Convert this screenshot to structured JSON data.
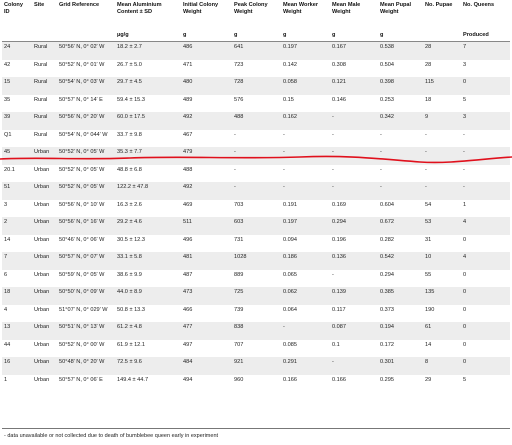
{
  "headers": [
    "Colony ID",
    "Site",
    "Grid Reference",
    "Mean Aluminium Content ± SD",
    "Initial Colony Weight",
    "Peak Colony Weight",
    "Mean Worker Weight",
    "Mean Male Weight",
    "Mean Pupal Weight",
    "No. Pupae",
    "No. Queens"
  ],
  "units": [
    "",
    "",
    "",
    "µg/g",
    "g",
    "g",
    "g",
    "g",
    "g",
    "",
    "Produced"
  ],
  "rows": [
    [
      "24",
      "Rural",
      "50°56′ N, 0° 02′ W",
      "18.2 ± 2.7",
      "486",
      "641",
      "0.197",
      "0.167",
      "0.538",
      "28",
      "7"
    ],
    [
      "42",
      "Rural",
      "50°52′ N, 0° 01′ W",
      "26.7 ± 5.0",
      "471",
      "723",
      "0.142",
      "0.308",
      "0.504",
      "28",
      "3"
    ],
    [
      "15",
      "Rural",
      "50°54′ N, 0° 03′ W",
      "29.7 ± 4.5",
      "480",
      "728",
      "0.058",
      "0.121",
      "0.398",
      "115",
      "0"
    ],
    [
      "35",
      "Rural",
      "50°57′ N, 0° 14′ E",
      "59.4 ± 15.3",
      "489",
      "576",
      "0.15",
      "0.146",
      "0.253",
      "18",
      "5"
    ],
    [
      "39",
      "Rural",
      "50°56′ N, 0° 20′ W",
      "60.0 ± 17.5",
      "492",
      "488",
      "0.162",
      "-",
      "0.342",
      "9",
      "3"
    ],
    [
      "Q1",
      "Rural",
      "50°54′ N, 0° 044′ W",
      "33.7 ± 9.8",
      "467",
      "-",
      "-",
      "-",
      "-",
      "-",
      "-"
    ],
    [
      "45",
      "Urban",
      "50°52′ N, 0° 05′ W",
      "35.3 ± 7.7",
      "479",
      "-",
      "-",
      "-",
      "-",
      "-",
      "-"
    ],
    [
      "20.1",
      "Urban",
      "50°52′ N, 0° 05′ W",
      "48.8 ± 6.8",
      "488",
      "-",
      "-",
      "-",
      "-",
      "-",
      "-"
    ],
    [
      "51",
      "Urban",
      "50°52′ N, 0° 05′ W",
      "122.2 ± 47.8",
      "492",
      "-",
      "-",
      "-",
      "-",
      "-",
      "-"
    ],
    [
      "3",
      "Urban",
      "50°56′ N, 0° 10′ W",
      "16.3 ± 2.6",
      "469",
      "703",
      "0.191",
      "0.169",
      "0.604",
      "54",
      "1"
    ],
    [
      "2",
      "Urban",
      "50°56′ N, 0° 16′ W",
      "29.2 ± 4.6",
      "511",
      "603",
      "0.197",
      "0.294",
      "0.672",
      "53",
      "4"
    ],
    [
      "14",
      "Urban",
      "50°46′ N, 0° 06′ W",
      "30.5 ± 12.3",
      "496",
      "731",
      "0.094",
      "0.196",
      "0.282",
      "31",
      "0"
    ],
    [
      "7",
      "Urban",
      "50°57′ N, 0° 07′ W",
      "33.1 ± 5.8",
      "481",
      "1028",
      "0.186",
      "0.136",
      "0.542",
      "10",
      "4"
    ],
    [
      "6",
      "Urban",
      "50°59′ N, 0° 05′ W",
      "38.6 ± 9.9",
      "487",
      "889",
      "0.065",
      "-",
      "0.294",
      "55",
      "0"
    ],
    [
      "18",
      "Urban",
      "50°50′ N, 0° 09′ W",
      "44.0 ± 8.9",
      "473",
      "725",
      "0.062",
      "0.139",
      "0.385",
      "135",
      "0"
    ],
    [
      "4",
      "Urban",
      "51°07′ N, 0° 029′ W",
      "50.8 ± 13.3",
      "466",
      "739",
      "0.064",
      "0.117",
      "0.373",
      "190",
      "0"
    ],
    [
      "13",
      "Urban",
      "50°51′ N, 0° 13′ W",
      "61.2 ± 4.8",
      "477",
      "838",
      "-",
      "0.087",
      "0.194",
      "61",
      "0"
    ],
    [
      "44",
      "Urban",
      "50°52′ N, 0° 00′ W",
      "61.9 ± 12.1",
      "497",
      "707",
      "0.085",
      "0.1",
      "0.172",
      "14",
      "0"
    ],
    [
      "16",
      "Urban",
      "50°48′ N, 0° 20′ W",
      "72.5 ± 9.6",
      "484",
      "921",
      "0.291",
      "-",
      "0.301",
      "8",
      "0"
    ],
    [
      "1",
      "Urban",
      "50°57′ N, 0° 06′ E",
      "149.4 ± 44.7",
      "494",
      "960",
      "0.166",
      "0.166",
      "0.295",
      "29",
      "5"
    ]
  ],
  "footnote": "- data unavailable or not collected due to death of bumblebee queen early in experiment",
  "annotation_color": "#e0101c"
}
